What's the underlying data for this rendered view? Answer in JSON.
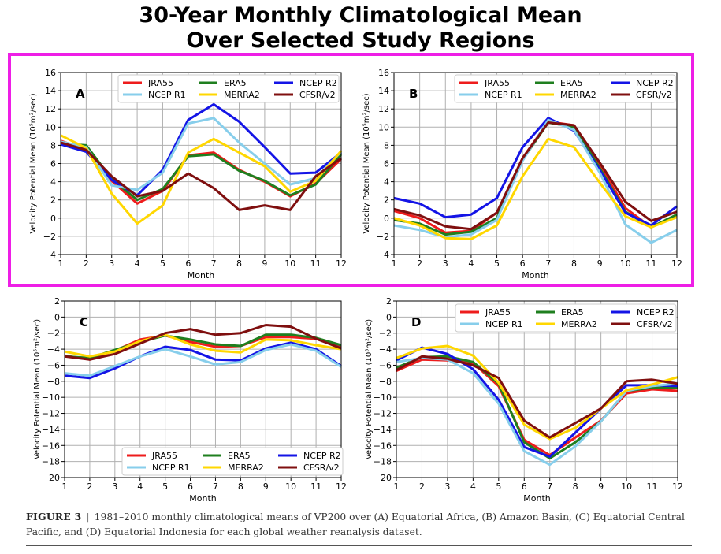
{
  "title_line1": "30-Year Monthly Climatological Mean",
  "title_line2": "Over Selected Study Regions",
  "caption": {
    "label": "FIGURE 3",
    "separator": "|",
    "text": "1981–2010 monthly climatological means of VP200 over (A) Equatorial Africa, (B) Amazon Basin, (C) Equatorial Central Pacific, and (D) Equatorial Indonesia for each global weather reanalysis dataset."
  },
  "series_style": [
    {
      "name": "JRA55",
      "color": "#ee1c1c"
    },
    {
      "name": "ERA5",
      "color": "#1f7f1f"
    },
    {
      "name": "NCEP R2",
      "color": "#1414e6"
    },
    {
      "name": "NCEP R1",
      "color": "#87ceeb"
    },
    {
      "name": "MERRA2",
      "color": "#ffd700"
    },
    {
      "name": "CFSR/v2",
      "color": "#7f0f0f"
    }
  ],
  "chart_data": [
    {
      "panel": "A",
      "type": "line",
      "xlabel": "Month",
      "ylabel": "Velocity Potential Mean (10⁵m²/sec)",
      "x": [
        1,
        2,
        3,
        4,
        5,
        6,
        7,
        8,
        9,
        10,
        11,
        12
      ],
      "xlim": [
        1,
        12
      ],
      "ylim": [
        -4,
        16
      ],
      "yticks": [
        -4,
        -2,
        0,
        2,
        4,
        6,
        8,
        10,
        12,
        14,
        16
      ],
      "grid": true,
      "legend_position": "top-right",
      "series": [
        {
          "name": "JRA55",
          "values": [
            8.5,
            7.5,
            4.1,
            1.6,
            3.0,
            6.9,
            7.2,
            5.3,
            4.0,
            2.4,
            3.8,
            6.5
          ]
        },
        {
          "name": "ERA5",
          "values": [
            8.2,
            8.0,
            4.3,
            2.0,
            3.2,
            6.8,
            7.0,
            5.2,
            4.1,
            2.5,
            3.7,
            7.0
          ]
        },
        {
          "name": "NCEP R2",
          "values": [
            8.1,
            7.3,
            4.2,
            2.5,
            5.3,
            10.8,
            12.5,
            10.6,
            7.8,
            4.9,
            5.0,
            7.2
          ]
        },
        {
          "name": "NCEP R1",
          "values": [
            8.4,
            7.8,
            3.6,
            3.1,
            5.0,
            10.4,
            11.0,
            8.3,
            6.0,
            3.7,
            4.4,
            7.3
          ]
        },
        {
          "name": "MERRA2",
          "values": [
            9.1,
            7.7,
            2.7,
            -0.6,
            1.4,
            7.2,
            8.7,
            7.2,
            5.7,
            2.9,
            4.1,
            7.4
          ]
        },
        {
          "name": "CFSR/v2",
          "values": [
            8.3,
            7.5,
            4.6,
            2.4,
            3.0,
            4.9,
            3.3,
            0.9,
            1.4,
            0.9,
            4.6,
            6.6
          ]
        }
      ]
    },
    {
      "panel": "B",
      "type": "line",
      "xlabel": "Month",
      "ylabel": "Velocity Potential Mean (10⁵m²/sec)",
      "x": [
        1,
        2,
        3,
        4,
        5,
        6,
        7,
        8,
        9,
        10,
        11,
        12
      ],
      "xlim": [
        1,
        12
      ],
      "ylim": [
        -4,
        16
      ],
      "yticks": [
        -4,
        -2,
        0,
        2,
        4,
        6,
        8,
        10,
        12,
        14,
        16
      ],
      "grid": true,
      "legend_position": "top-right",
      "series": [
        {
          "name": "JRA55",
          "values": [
            0.8,
            0.0,
            -1.6,
            -1.4,
            0.6,
            6.6,
            10.6,
            10.2,
            5.8,
            1.1,
            -1.0,
            0.3
          ]
        },
        {
          "name": "ERA5",
          "values": [
            -0.2,
            -0.6,
            -1.8,
            -1.5,
            0.0,
            6.4,
            10.5,
            10.0,
            5.5,
            0.7,
            -1.0,
            0.4
          ]
        },
        {
          "name": "NCEP R2",
          "values": [
            2.2,
            1.6,
            0.1,
            0.4,
            2.2,
            7.8,
            11.0,
            9.6,
            5.3,
            0.6,
            -0.8,
            1.3
          ]
        },
        {
          "name": "NCEP R1",
          "values": [
            -0.8,
            -1.3,
            -2.1,
            -1.8,
            -0.2,
            6.3,
            10.8,
            9.7,
            5.0,
            -0.7,
            -2.7,
            -1.3
          ]
        },
        {
          "name": "MERRA2",
          "values": [
            0.0,
            -0.8,
            -2.2,
            -2.3,
            -0.8,
            4.6,
            8.7,
            7.8,
            3.9,
            0.2,
            -1.0,
            0.1
          ]
        },
        {
          "name": "CFSR/v2",
          "values": [
            1.0,
            0.3,
            -0.9,
            -1.2,
            0.6,
            6.6,
            10.5,
            10.2,
            6.1,
            1.8,
            -0.3,
            0.7
          ]
        }
      ]
    },
    {
      "panel": "C",
      "type": "line",
      "xlabel": "Month",
      "ylabel": "Velocity Potential Mean (10⁵m²/sec)",
      "x": [
        1,
        2,
        3,
        4,
        5,
        6,
        7,
        8,
        9,
        10,
        11,
        12
      ],
      "xlim": [
        1,
        12
      ],
      "ylim": [
        -20,
        2
      ],
      "yticks": [
        -20,
        -18,
        -16,
        -14,
        -12,
        -10,
        -8,
        -6,
        -4,
        -2,
        0,
        2
      ],
      "grid": true,
      "legend_position": "bottom-center",
      "series": [
        {
          "name": "JRA55",
          "values": [
            -4.8,
            -5.3,
            -4.2,
            -2.8,
            -2.3,
            -3.1,
            -3.7,
            -3.6,
            -2.5,
            -2.5,
            -2.7,
            -3.7
          ]
        },
        {
          "name": "ERA5",
          "values": [
            -4.9,
            -5.1,
            -4.1,
            -3.1,
            -2.3,
            -2.8,
            -3.4,
            -3.6,
            -2.2,
            -2.2,
            -2.6,
            -3.5
          ]
        },
        {
          "name": "NCEP R2",
          "values": [
            -7.3,
            -7.6,
            -6.4,
            -4.9,
            -3.7,
            -4.1,
            -5.3,
            -5.4,
            -3.9,
            -3.2,
            -4.0,
            -6.1
          ]
        },
        {
          "name": "NCEP R1",
          "values": [
            -7.0,
            -7.3,
            -6.1,
            -4.9,
            -4.0,
            -4.9,
            -5.9,
            -5.6,
            -4.1,
            -3.4,
            -4.2,
            -6.2
          ]
        },
        {
          "name": "MERRA2",
          "values": [
            -4.3,
            -4.9,
            -4.3,
            -3.0,
            -2.2,
            -3.4,
            -4.2,
            -4.4,
            -2.8,
            -2.9,
            -3.5,
            -4.0
          ]
        },
        {
          "name": "CFSR/v2",
          "values": [
            -4.9,
            -5.3,
            -4.6,
            -3.3,
            -2.0,
            -1.5,
            -2.2,
            -2.0,
            -1.0,
            -1.2,
            -2.7,
            -3.9
          ]
        }
      ]
    },
    {
      "panel": "D",
      "type": "line",
      "xlabel": "Month",
      "ylabel": "Velocity Potential Mean (10⁵m²/sec)",
      "x": [
        1,
        2,
        3,
        4,
        5,
        6,
        7,
        8,
        9,
        10,
        11,
        12
      ],
      "xlim": [
        1,
        12
      ],
      "ylim": [
        -20,
        2
      ],
      "yticks": [
        -20,
        -18,
        -16,
        -14,
        -12,
        -10,
        -8,
        -6,
        -4,
        -2,
        0,
        2
      ],
      "grid": true,
      "legend_position": "top-right",
      "series": [
        {
          "name": "JRA55",
          "values": [
            -6.7,
            -5.3,
            -5.4,
            -5.7,
            -8.6,
            -15.3,
            -17.2,
            -15.0,
            -12.9,
            -9.5,
            -9.0,
            -9.2
          ]
        },
        {
          "name": "ERA5",
          "values": [
            -6.3,
            -5.0,
            -4.9,
            -5.6,
            -8.3,
            -15.6,
            -17.6,
            -15.6,
            -13.0,
            -9.2,
            -8.8,
            -8.8
          ]
        },
        {
          "name": "NCEP R2",
          "values": [
            -5.4,
            -3.8,
            -4.6,
            -6.5,
            -10.3,
            -16.2,
            -17.4,
            -14.4,
            -11.4,
            -8.5,
            -8.5,
            -8.6
          ]
        },
        {
          "name": "NCEP R1",
          "values": [
            -5.6,
            -5.1,
            -5.3,
            -7.0,
            -10.8,
            -16.7,
            -18.4,
            -16.1,
            -13.0,
            -9.2,
            -8.6,
            -8.3
          ]
        },
        {
          "name": "MERRA2",
          "values": [
            -5.1,
            -3.9,
            -3.6,
            -4.8,
            -8.2,
            -13.4,
            -15.2,
            -13.8,
            -11.4,
            -9.1,
            -8.4,
            -7.5
          ]
        },
        {
          "name": "CFSR/v2",
          "values": [
            -6.6,
            -4.9,
            -5.2,
            -6.0,
            -7.6,
            -12.9,
            -15.0,
            -13.2,
            -11.4,
            -8.0,
            -7.8,
            -8.3
          ]
        }
      ]
    }
  ]
}
